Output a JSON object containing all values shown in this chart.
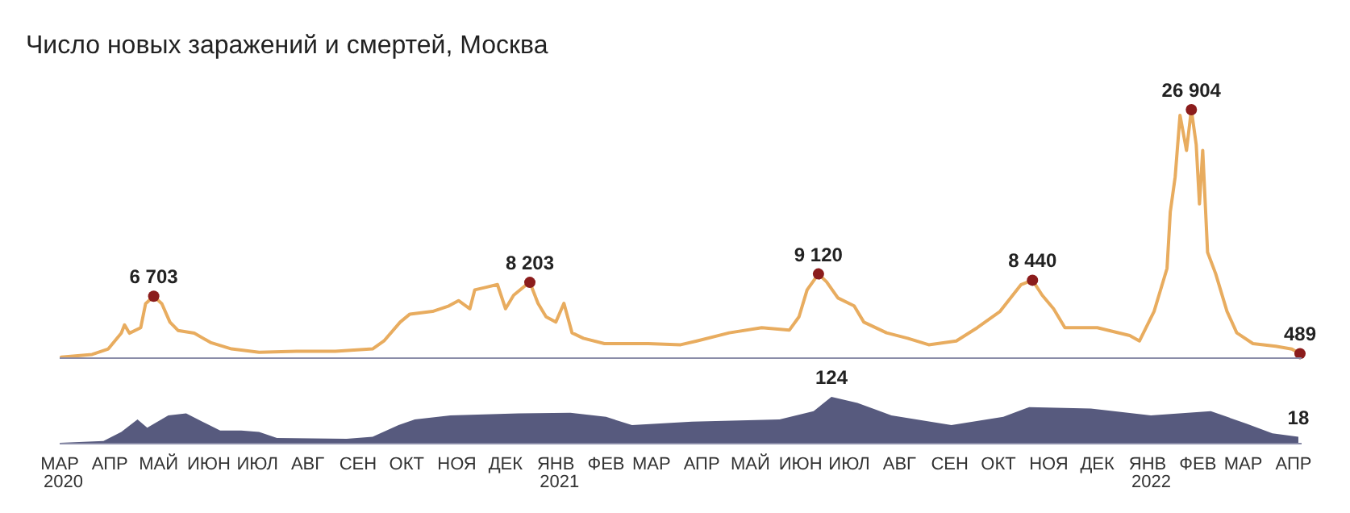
{
  "chart_data": [
    {
      "type": "line",
      "title": "Число новых заражений и смертей, Москва",
      "xlim": [
        "2020-03-01",
        "2022-04-06"
      ],
      "tick_labels": false,
      "x": [
        "2020-03-02",
        "2020-03-21",
        "2020-03-31",
        "2020-04-08",
        "2020-04-10",
        "2020-04-13",
        "2020-04-20",
        "2020-04-23",
        "2020-04-28",
        "2020-05-03",
        "2020-05-08",
        "2020-05-13",
        "2020-05-23",
        "2020-06-02",
        "2020-06-15",
        "2020-07-02",
        "2020-07-25",
        "2020-08-18",
        "2020-09-10",
        "2020-09-17",
        "2020-09-27",
        "2020-10-03",
        "2020-10-17",
        "2020-10-27",
        "2020-11-02",
        "2020-11-09",
        "2020-11-12",
        "2020-11-19",
        "2020-11-26",
        "2020-12-01",
        "2020-12-06",
        "2020-12-14",
        "2020-12-16",
        "2020-12-21",
        "2020-12-26",
        "2021-01-01",
        "2021-01-06",
        "2021-01-11",
        "2021-01-18",
        "2021-01-31",
        "2021-02-27",
        "2021-03-19",
        "2021-03-29",
        "2021-04-18",
        "2021-05-08",
        "2021-05-25",
        "2021-05-31",
        "2021-06-05",
        "2021-06-12",
        "2021-06-17",
        "2021-06-24",
        "2021-07-04",
        "2021-07-10",
        "2021-07-24",
        "2021-08-06",
        "2021-08-19",
        "2021-09-05",
        "2021-09-18",
        "2021-10-02",
        "2021-10-15",
        "2021-10-22",
        "2021-10-28",
        "2021-11-04",
        "2021-11-11",
        "2021-12-01",
        "2021-12-21",
        "2021-12-27",
        "2022-01-05",
        "2022-01-13",
        "2022-01-15",
        "2022-01-18",
        "2022-01-21",
        "2022-01-25",
        "2022-01-28",
        "2022-01-31",
        "2022-02-02",
        "2022-02-04",
        "2022-02-07",
        "2022-02-12",
        "2022-02-19",
        "2022-02-25",
        "2022-03-07",
        "2022-03-21",
        "2022-03-31",
        "2022-04-05"
      ],
      "series": [
        {
          "color": "#e8ac5f",
          "values": [
            100,
            400,
            1000,
            2700,
            3600,
            2700,
            3300,
            5900,
            6703,
            5900,
            3900,
            3000,
            2700,
            1700,
            1000,
            640,
            750,
            750,
            1000,
            1860,
            3900,
            4770,
            5060,
            5650,
            6230,
            5350,
            7390,
            7680,
            7970,
            5350,
            6810,
            7970,
            8203,
            5940,
            4480,
            3900,
            5940,
            2740,
            2150,
            1570,
            1570,
            1450,
            1860,
            2740,
            3300,
            3030,
            4480,
            7390,
            9120,
            8260,
            6520,
            5650,
            3900,
            2740,
            2150,
            1450,
            1860,
            3300,
            5060,
            7970,
            8440,
            6810,
            5350,
            3300,
            3300,
            2440,
            1860,
            5060,
            9720,
            15830,
            19610,
            26300,
            22500,
            26904,
            23100,
            16700,
            22500,
            11470,
            9140,
            5060,
            2740,
            1570,
            1280,
            990,
            489
          ],
          "value_labels": [
            null,
            null,
            null,
            null,
            null,
            null,
            null,
            null,
            "6 703",
            null,
            null,
            null,
            null,
            null,
            null,
            null,
            null,
            null,
            null,
            null,
            null,
            null,
            null,
            null,
            null,
            null,
            null,
            null,
            null,
            null,
            null,
            null,
            "8 203",
            null,
            null,
            null,
            null,
            null,
            null,
            null,
            null,
            null,
            null,
            null,
            null,
            null,
            null,
            null,
            "9 120",
            null,
            null,
            null,
            null,
            null,
            null,
            null,
            null,
            null,
            null,
            null,
            "8 440",
            null,
            null,
            null,
            null,
            null,
            null,
            null,
            null,
            null,
            null,
            null,
            null,
            "26 904",
            null,
            null,
            null,
            null,
            null,
            null,
            null,
            null,
            null,
            null,
            "489"
          ]
        }
      ]
    },
    {
      "type": "area",
      "xlim": [
        "2020-03-01",
        "2022-04-06"
      ],
      "tick_labels": "x",
      "xticks": [
        {
          "value": "2020-03-01",
          "label": "МАР 2020"
        },
        {
          "value": "2020-04-01",
          "label": "АПР"
        },
        {
          "value": "2020-05-01",
          "label": "МАЙ"
        },
        {
          "value": "2020-06-01",
          "label": "ИЮН"
        },
        {
          "value": "2020-07-01",
          "label": "ИЮЛ"
        },
        {
          "value": "2020-08-01",
          "label": "АВГ"
        },
        {
          "value": "2020-09-01",
          "label": "СЕН"
        },
        {
          "value": "2020-10-01",
          "label": "ОКТ"
        },
        {
          "value": "2020-11-01",
          "label": "НОЯ"
        },
        {
          "value": "2020-12-01",
          "label": "ДЕК"
        },
        {
          "value": "2021-01-01",
          "label": "ЯНВ 2021"
        },
        {
          "value": "2021-02-01",
          "label": "ФЕВ"
        },
        {
          "value": "2021-03-01",
          "label": "МАР"
        },
        {
          "value": "2021-04-01",
          "label": "АПР"
        },
        {
          "value": "2021-05-01",
          "label": "МАЙ"
        },
        {
          "value": "2021-06-01",
          "label": "ИЮН"
        },
        {
          "value": "2021-07-01",
          "label": "ИЮЛ"
        },
        {
          "value": "2021-08-01",
          "label": "АВГ"
        },
        {
          "value": "2021-09-01",
          "label": "СЕН"
        },
        {
          "value": "2021-10-01",
          "label": "ОКТ"
        },
        {
          "value": "2021-11-01",
          "label": "НОЯ"
        },
        {
          "value": "2021-12-01",
          "label": "ДЕК"
        },
        {
          "value": "2022-01-01",
          "label": "ЯНВ 2022"
        },
        {
          "value": "2022-02-01",
          "label": "ФЕВ"
        },
        {
          "value": "2022-03-01",
          "label": "МАР"
        },
        {
          "value": "2022-04-01",
          "label": "АПР"
        }
      ],
      "x": [
        "2020-03-01",
        "2020-03-28",
        "2020-04-08",
        "2020-04-18",
        "2020-04-24",
        "2020-05-07",
        "2020-05-18",
        "2020-05-28",
        "2020-06-08",
        "2020-06-21",
        "2020-07-02",
        "2020-07-13",
        "2020-08-25",
        "2020-09-10",
        "2020-09-26",
        "2020-10-06",
        "2020-10-28",
        "2020-12-09",
        "2021-01-10",
        "2021-02-01",
        "2021-02-17",
        "2021-03-26",
        "2021-05-19",
        "2021-06-09",
        "2021-06-20",
        "2021-07-06",
        "2021-07-27",
        "2021-09-02",
        "2021-10-04",
        "2021-10-20",
        "2021-11-27",
        "2022-01-03",
        "2022-02-09",
        "2022-03-03",
        "2022-03-19",
        "2022-04-04"
      ],
      "series": [
        {
          "color": "#575a7e",
          "values": [
            2,
            7,
            31,
            64,
            42,
            75,
            80,
            58,
            35,
            35,
            31,
            15,
            13,
            18,
            49,
            64,
            75,
            80,
            82,
            71,
            49,
            58,
            64,
            86,
            124,
            108,
            75,
            49,
            71,
            97,
            93,
            75,
            86,
            53,
            27,
            18
          ],
          "value_labels": [
            null,
            null,
            null,
            null,
            null,
            null,
            null,
            null,
            null,
            null,
            null,
            null,
            null,
            null,
            null,
            null,
            null,
            null,
            null,
            null,
            null,
            null,
            null,
            null,
            "124",
            null,
            null,
            null,
            null,
            null,
            null,
            null,
            null,
            null,
            null,
            "18"
          ]
        }
      ]
    }
  ]
}
